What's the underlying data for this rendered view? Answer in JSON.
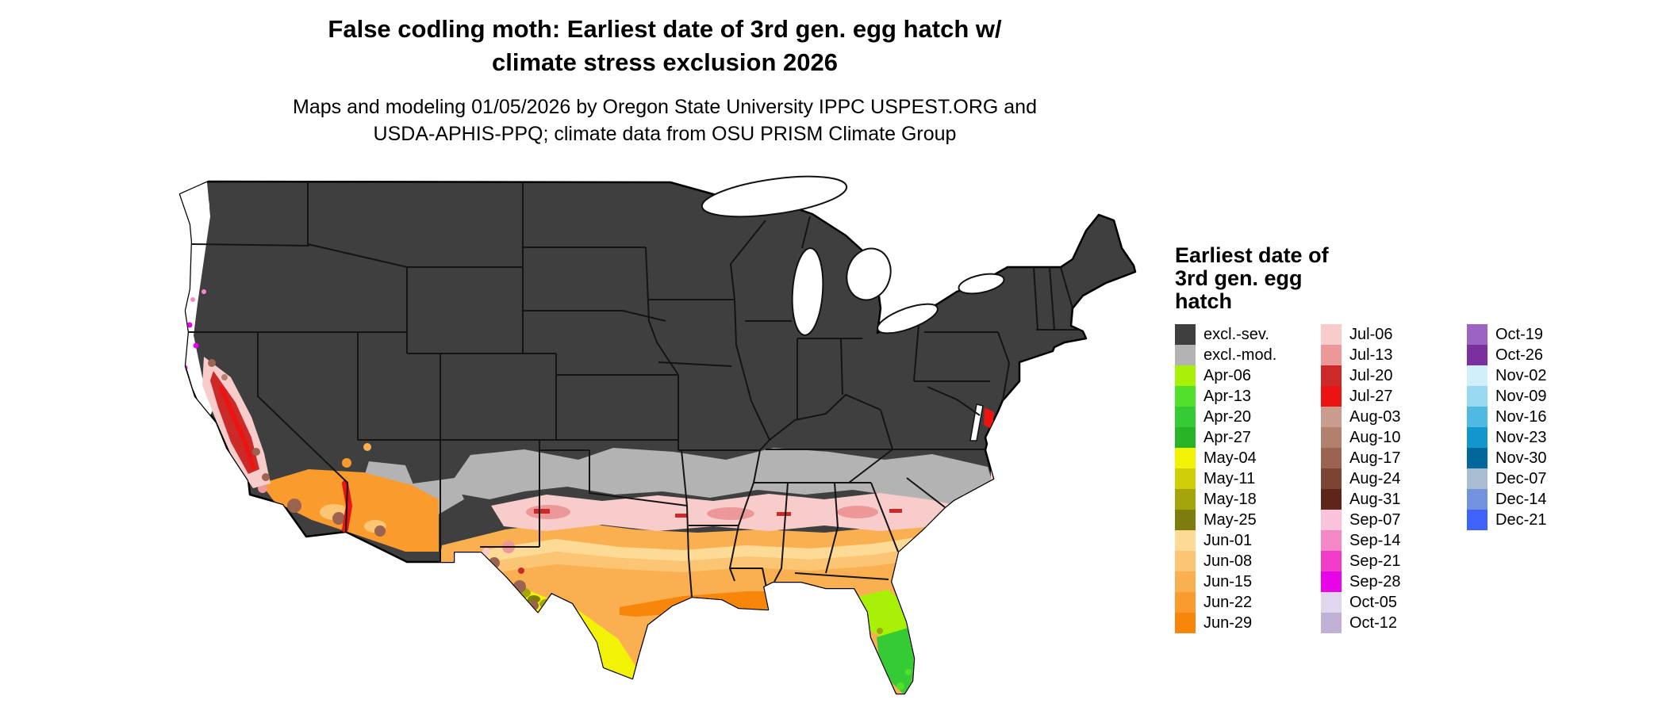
{
  "title": {
    "line1": "False codling moth: Earliest date of 3rd gen. egg hatch w/",
    "line2": "climate stress exclusion 2026"
  },
  "subtitle": {
    "line1": "Maps and modeling 01/05/2026 by Oregon State University IPPC USPEST.ORG and",
    "line2": "USDA-APHIS-PPQ; climate data from OSU PRISM Climate Group"
  },
  "legend": {
    "title": "Earliest date of 3rd gen. egg hatch",
    "columns": [
      [
        {
          "label": "excl.-sev.",
          "color": "#3f3f3f"
        },
        {
          "label": "excl.-mod.",
          "color": "#b3b3b3"
        },
        {
          "label": "Apr-06",
          "color": "#a9f007"
        },
        {
          "label": "Apr-13",
          "color": "#52e12b"
        },
        {
          "label": "Apr-20",
          "color": "#35cb35"
        },
        {
          "label": "Apr-27",
          "color": "#27b427"
        },
        {
          "label": "May-04",
          "color": "#f2f207"
        },
        {
          "label": "May-11",
          "color": "#cfcf09"
        },
        {
          "label": "May-18",
          "color": "#a5a50b"
        },
        {
          "label": "May-25",
          "color": "#7d7d0c"
        },
        {
          "label": "Jun-01",
          "color": "#fdda96"
        },
        {
          "label": "Jun-08",
          "color": "#fcc573"
        },
        {
          "label": "Jun-15",
          "color": "#fab050"
        },
        {
          "label": "Jun-22",
          "color": "#f99b2d"
        },
        {
          "label": "Jun-29",
          "color": "#f8860a"
        }
      ],
      [
        {
          "label": "Jul-06",
          "color": "#f9cccc"
        },
        {
          "label": "Jul-13",
          "color": "#ec9898"
        },
        {
          "label": "Jul-20",
          "color": "#cc2929"
        },
        {
          "label": "Jul-27",
          "color": "#ec1313"
        },
        {
          "label": "Aug-03",
          "color": "#c99c8d"
        },
        {
          "label": "Aug-10",
          "color": "#b2816e"
        },
        {
          "label": "Aug-17",
          "color": "#9c6350"
        },
        {
          "label": "Aug-24",
          "color": "#7d4434"
        },
        {
          "label": "Aug-31",
          "color": "#5e2518"
        },
        {
          "label": "Sep-07",
          "color": "#f9c3dc"
        },
        {
          "label": "Sep-14",
          "color": "#f687c6"
        },
        {
          "label": "Sep-21",
          "color": "#f13cc7"
        },
        {
          "label": "Sep-28",
          "color": "#e903e9"
        },
        {
          "label": "Oct-05",
          "color": "#e2d5ee"
        },
        {
          "label": "Oct-12",
          "color": "#c0b0d6"
        }
      ],
      [
        {
          "label": "Oct-19",
          "color": "#9a63c4"
        },
        {
          "label": "Oct-26",
          "color": "#7c2f9e"
        },
        {
          "label": "Nov-02",
          "color": "#d0effb"
        },
        {
          "label": "Nov-09",
          "color": "#96d9f0"
        },
        {
          "label": "Nov-16",
          "color": "#50b9e1"
        },
        {
          "label": "Nov-23",
          "color": "#1395cd"
        },
        {
          "label": "Nov-30",
          "color": "#02689b"
        },
        {
          "label": "Dec-07",
          "color": "#a9bdd2"
        },
        {
          "label": "Dec-14",
          "color": "#7292de"
        },
        {
          "label": "Dec-21",
          "color": "#3f63f8"
        }
      ]
    ]
  }
}
